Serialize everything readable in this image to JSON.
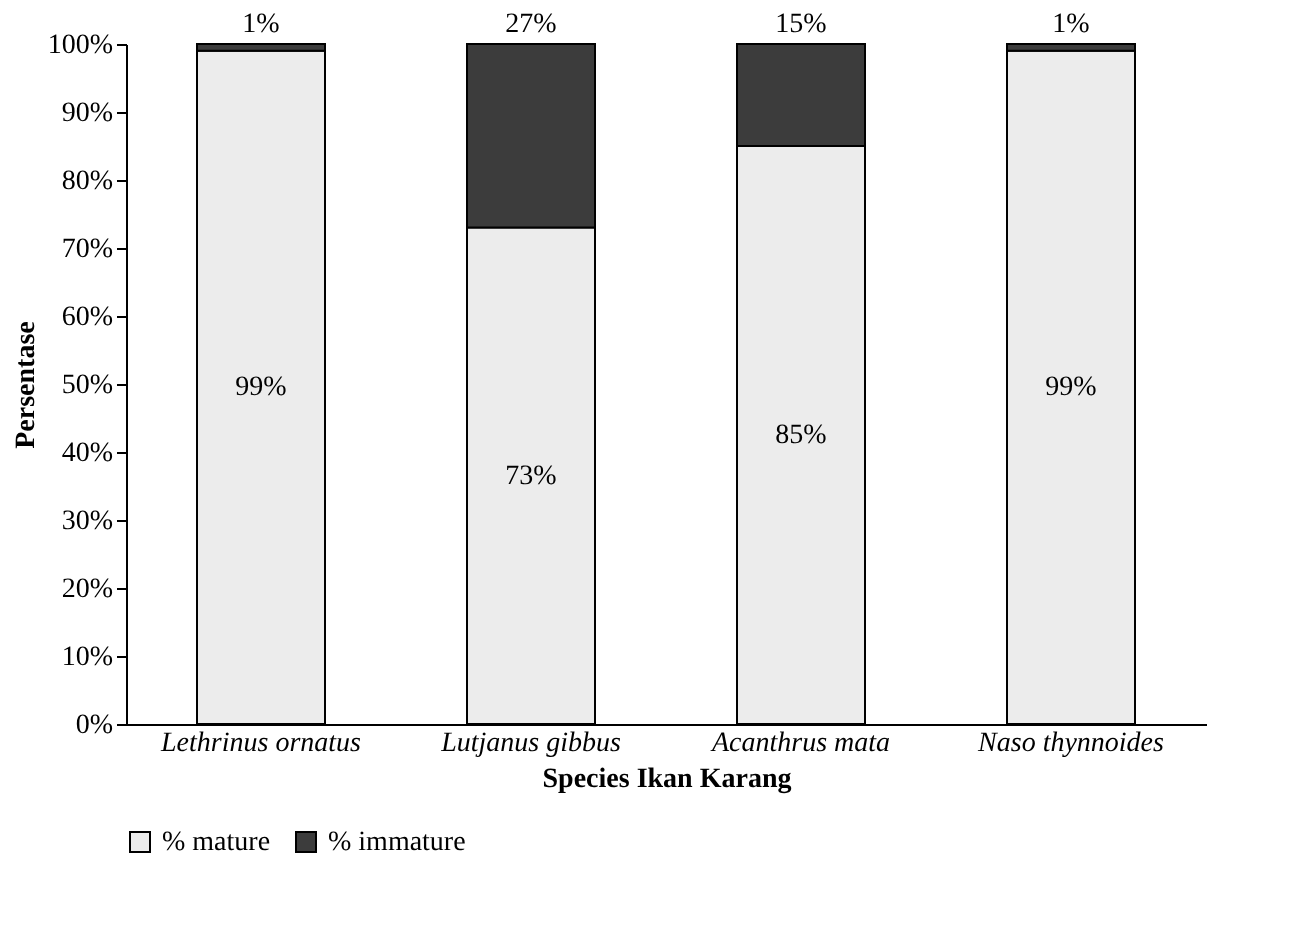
{
  "chart_data": {
    "type": "bar",
    "stacked": true,
    "xlabel": "Species Ikan Karang",
    "ylabel": "Persentase",
    "categories": [
      "Lethrinus ornatus",
      "Lutjanus gibbus",
      "Acanthrus mata",
      "Naso thynnoides"
    ],
    "series": [
      {
        "name": "% mature",
        "color": "#ececec",
        "values": [
          99,
          73,
          85,
          99
        ],
        "value_labels": [
          "99%",
          "73%",
          "85%",
          "99%"
        ]
      },
      {
        "name": "% immature",
        "color": "#3c3c3c",
        "values": [
          1,
          27,
          15,
          1
        ],
        "value_labels": [
          "1%",
          "27%",
          "15%",
          "1%"
        ]
      }
    ],
    "ylim": [
      0,
      100
    ],
    "yticks": [
      {
        "value": 0,
        "label": "0%"
      },
      {
        "value": 10,
        "label": "10%"
      },
      {
        "value": 20,
        "label": "20%"
      },
      {
        "value": 30,
        "label": "30%"
      },
      {
        "value": 40,
        "label": "40%"
      },
      {
        "value": 50,
        "label": "50%"
      },
      {
        "value": 60,
        "label": "60%"
      },
      {
        "value": 70,
        "label": "70%"
      },
      {
        "value": 80,
        "label": "80%"
      },
      {
        "value": 90,
        "label": "90%"
      },
      {
        "value": 100,
        "label": "100%"
      }
    ],
    "grid": false,
    "legend": "bottom"
  }
}
